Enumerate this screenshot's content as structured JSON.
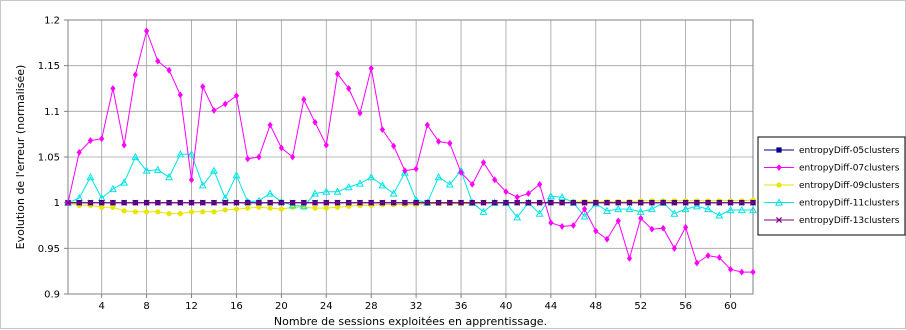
{
  "chart_data": {
    "type": "line",
    "xlabel": "Nombre de sessions exploitées en apprentissage.",
    "ylabel": "Evolution de l'erreur (normalisée)",
    "xlim": [
      1,
      62
    ],
    "ylim": [
      0.9,
      1.2
    ],
    "xticks": [
      4,
      8,
      12,
      16,
      20,
      24,
      28,
      32,
      36,
      40,
      44,
      48,
      52,
      56,
      60
    ],
    "yticks": [
      0.9,
      0.95,
      1,
      1.05,
      1.1,
      1.15,
      1.2
    ],
    "ytick_labels": [
      "0.9",
      "0.95",
      "1",
      "1.05",
      "1.1",
      "1.15",
      "1.2"
    ],
    "grid": true,
    "legend_position": "right",
    "x": [
      1,
      2,
      3,
      4,
      5,
      6,
      7,
      8,
      9,
      10,
      11,
      12,
      13,
      14,
      15,
      16,
      17,
      18,
      19,
      20,
      21,
      22,
      23,
      24,
      25,
      26,
      27,
      28,
      29,
      30,
      31,
      32,
      33,
      34,
      35,
      36,
      37,
      38,
      39,
      40,
      41,
      42,
      43,
      44,
      45,
      46,
      47,
      48,
      49,
      50,
      51,
      52,
      53,
      54,
      55,
      56,
      57,
      58,
      59,
      60,
      61,
      62
    ],
    "series": [
      {
        "name": "entropyDiff-05clusters",
        "color": "#000080",
        "marker": "square",
        "values": [
          1,
          1,
          1,
          1,
          1,
          1,
          1,
          1,
          1,
          1,
          1,
          1,
          1,
          1,
          1,
          1,
          1,
          1,
          1,
          1,
          1,
          1,
          1,
          1,
          1,
          1,
          1,
          1,
          1,
          1,
          1,
          1,
          1,
          1,
          1,
          1,
          1,
          1,
          1,
          1,
          1,
          1,
          1,
          1,
          1,
          1,
          1,
          1,
          1,
          1,
          1,
          1,
          1,
          1,
          1,
          1,
          1,
          1,
          1,
          1,
          1,
          1
        ]
      },
      {
        "name": "entropyDiff-07clusters",
        "color": "#ff00ff",
        "marker": "diamond",
        "values": [
          1.0,
          1.055,
          1.068,
          1.07,
          1.125,
          1.063,
          1.14,
          1.188,
          1.155,
          1.145,
          1.118,
          1.025,
          1.127,
          1.101,
          1.108,
          1.117,
          1.048,
          1.05,
          1.085,
          1.06,
          1.05,
          1.113,
          1.088,
          1.063,
          1.141,
          1.125,
          1.098,
          1.147,
          1.08,
          1.062,
          1.035,
          1.037,
          1.085,
          1.067,
          1.065,
          1.033,
          1.02,
          1.044,
          1.025,
          1.012,
          1.006,
          1.01,
          1.02,
          0.978,
          0.974,
          0.975,
          0.993,
          0.969,
          0.96,
          0.98,
          0.939,
          0.983,
          0.971,
          0.972,
          0.95,
          0.973,
          0.934,
          0.942,
          0.94,
          0.927,
          0.924,
          0.924
        ]
      },
      {
        "name": "entropyDiff-09clusters",
        "color": "#e6e600",
        "marker": "circle",
        "values": [
          1.0,
          0.997,
          0.997,
          0.995,
          0.995,
          0.991,
          0.99,
          0.99,
          0.99,
          0.988,
          0.988,
          0.99,
          0.99,
          0.99,
          0.992,
          0.993,
          0.994,
          0.995,
          0.994,
          0.993,
          0.995,
          0.995,
          0.994,
          0.994,
          0.995,
          0.996,
          0.997,
          0.997,
          0.998,
          0.998,
          0.998,
          0.998,
          0.999,
          0.999,
          0.999,
          0.999,
          0.999,
          1.0,
          1.0,
          1.0,
          1.0,
          1.0,
          1.0,
          1.0,
          1.0,
          1.001,
          1.001,
          1.001,
          1.001,
          1.001,
          1.001,
          1.002,
          1.002,
          1.002,
          1.002,
          1.002,
          1.002,
          1.002,
          1.002,
          1.002,
          1.002,
          1.003
        ]
      },
      {
        "name": "entropyDiff-11clusters",
        "color": "#00e5e5",
        "marker": "triangle",
        "values": [
          1.0,
          1.005,
          1.028,
          1.005,
          1.015,
          1.022,
          1.05,
          1.035,
          1.036,
          1.028,
          1.053,
          1.053,
          1.019,
          1.035,
          1.005,
          1.03,
          1.001,
          1.002,
          1.01,
          1.001,
          0.997,
          0.996,
          1.01,
          1.012,
          1.012,
          1.017,
          1.021,
          1.028,
          1.019,
          1.01,
          1.033,
          1.003,
          1.0,
          1.028,
          1.02,
          1.035,
          1.0,
          0.99,
          1.0,
          1.0,
          0.984,
          1.0,
          0.988,
          1.007,
          1.006,
          1.0,
          0.985,
          0.999,
          0.991,
          0.993,
          0.993,
          0.99,
          0.993,
          1.0,
          0.988,
          0.993,
          0.996,
          0.993,
          0.986,
          0.992,
          0.992,
          0.992
        ]
      },
      {
        "name": "entropyDiff-13clusters",
        "color": "#7f007f",
        "marker": "x",
        "values": [
          1,
          1,
          1,
          1,
          1,
          1,
          1,
          1,
          1,
          1,
          1,
          1,
          1,
          1,
          1,
          1,
          1,
          1,
          1,
          1,
          1,
          1,
          1,
          1,
          1,
          1,
          1,
          1,
          1,
          1,
          1,
          1,
          1,
          1,
          1,
          1,
          1,
          1,
          1,
          1,
          1,
          1,
          1,
          1,
          1,
          1,
          1,
          1,
          1,
          1,
          1,
          1,
          1,
          1,
          1,
          1,
          1,
          1,
          1,
          1,
          1,
          1
        ]
      }
    ]
  }
}
